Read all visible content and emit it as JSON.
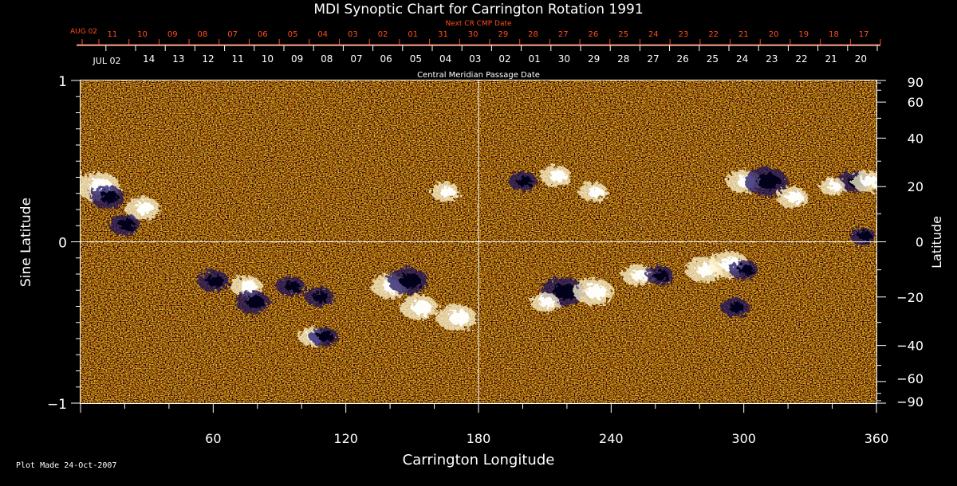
{
  "chart_data": {
    "type": "heatmap",
    "title": "MDI Synoptic Chart for Carrington Rotation 1991",
    "xlabel": "Carrington Longitude",
    "ylabel_left": "Sine Latitude",
    "ylabel_right": "Latitude",
    "xlim": [
      0,
      360
    ],
    "ylim_sine": [
      -1,
      1
    ],
    "x_ticks": [
      60,
      120,
      180,
      240,
      300,
      360
    ],
    "y_ticks_left": [
      {
        "value": 1,
        "label": "1"
      },
      {
        "value": 0,
        "label": "0"
      },
      {
        "value": -1,
        "label": "−1"
      }
    ],
    "y_ticks_right_deg": [
      90,
      60,
      40,
      20,
      0,
      -20,
      -40,
      -60,
      -90
    ],
    "y_tick_labels_right": [
      "90",
      "60",
      "40",
      "20",
      "0",
      "−20",
      "−40",
      "−60",
      "−90"
    ],
    "grid_lines": {
      "longitude": 180,
      "sine_latitude": 0
    },
    "top_axis_next": {
      "label": "Next CR CMP Date",
      "start_label": "AUG 02",
      "dates": [
        "11",
        "10",
        "09",
        "08",
        "07",
        "06",
        "05",
        "04",
        "03",
        "02",
        "01",
        "31",
        "30",
        "29",
        "28",
        "27",
        "26",
        "25",
        "24",
        "23",
        "22",
        "21",
        "20",
        "19",
        "18",
        "17"
      ]
    },
    "top_axis_cmp": {
      "label": "Central Meridian Passage Date",
      "start_label": "JUL 02",
      "dates": [
        "14",
        "13",
        "12",
        "11",
        "10",
        "09",
        "08",
        "07",
        "06",
        "05",
        "04",
        "03",
        "02",
        "01",
        "30",
        "29",
        "28",
        "27",
        "26",
        "25",
        "24",
        "23",
        "22",
        "21",
        "20"
      ]
    },
    "colormap": "magnetic flux: white = positive polarity, dark blue/black = negative polarity, orange = background",
    "colors": {
      "background": "#000000",
      "field": "#e0561c",
      "positive": "#ffffff",
      "negative": "#1a1060",
      "next_axis": "#ff4b1e",
      "grid": "#ffffff"
    },
    "active_regions": [
      {
        "lon": 8,
        "lat": 20,
        "polarity": "positive",
        "strength": 1.0
      },
      {
        "lon": 12,
        "lat": 16,
        "polarity": "negative",
        "strength": 0.7
      },
      {
        "lon": 28,
        "lat": 12,
        "polarity": "positive",
        "strength": 0.7
      },
      {
        "lon": 20,
        "lat": 6,
        "polarity": "negative",
        "strength": 0.6
      },
      {
        "lon": 60,
        "lat": -14,
        "polarity": "negative",
        "strength": 0.6
      },
      {
        "lon": 75,
        "lat": -16,
        "polarity": "positive",
        "strength": 0.6
      },
      {
        "lon": 78,
        "lat": -22,
        "polarity": "negative",
        "strength": 0.7
      },
      {
        "lon": 95,
        "lat": -16,
        "polarity": "negative",
        "strength": 0.5
      },
      {
        "lon": 108,
        "lat": -20,
        "polarity": "negative",
        "strength": 0.5
      },
      {
        "lon": 140,
        "lat": -16,
        "polarity": "positive",
        "strength": 0.8
      },
      {
        "lon": 148,
        "lat": -14,
        "polarity": "negative",
        "strength": 0.9
      },
      {
        "lon": 153,
        "lat": -24,
        "polarity": "positive",
        "strength": 0.8
      },
      {
        "lon": 170,
        "lat": -28,
        "polarity": "positive",
        "strength": 0.9
      },
      {
        "lon": 105,
        "lat": -36,
        "polarity": "positive",
        "strength": 0.5
      },
      {
        "lon": 110,
        "lat": -36,
        "polarity": "negative",
        "strength": 0.5
      },
      {
        "lon": 165,
        "lat": 18,
        "polarity": "positive",
        "strength": 0.5
      },
      {
        "lon": 200,
        "lat": 22,
        "polarity": "negative",
        "strength": 0.5
      },
      {
        "lon": 215,
        "lat": 24,
        "polarity": "positive",
        "strength": 0.6
      },
      {
        "lon": 232,
        "lat": 18,
        "polarity": "positive",
        "strength": 0.5
      },
      {
        "lon": 218,
        "lat": -18,
        "polarity": "negative",
        "strength": 1.0
      },
      {
        "lon": 232,
        "lat": -18,
        "polarity": "positive",
        "strength": 0.9
      },
      {
        "lon": 210,
        "lat": -22,
        "polarity": "positive",
        "strength": 0.5
      },
      {
        "lon": 252,
        "lat": -12,
        "polarity": "positive",
        "strength": 0.6
      },
      {
        "lon": 262,
        "lat": -12,
        "polarity": "negative",
        "strength": 0.5
      },
      {
        "lon": 282,
        "lat": -10,
        "polarity": "positive",
        "strength": 0.8
      },
      {
        "lon": 293,
        "lat": -8,
        "polarity": "positive",
        "strength": 0.9
      },
      {
        "lon": 300,
        "lat": -10,
        "polarity": "negative",
        "strength": 0.5
      },
      {
        "lon": 296,
        "lat": -24,
        "polarity": "negative",
        "strength": 0.5
      },
      {
        "lon": 300,
        "lat": 22,
        "polarity": "positive",
        "strength": 0.7
      },
      {
        "lon": 310,
        "lat": 22,
        "polarity": "negative",
        "strength": 1.0
      },
      {
        "lon": 322,
        "lat": 16,
        "polarity": "positive",
        "strength": 0.6
      },
      {
        "lon": 350,
        "lat": 22,
        "polarity": "negative",
        "strength": 0.6
      },
      {
        "lon": 356,
        "lat": 22,
        "polarity": "positive",
        "strength": 0.6
      },
      {
        "lon": 340,
        "lat": 20,
        "polarity": "positive",
        "strength": 0.4
      },
      {
        "lon": 354,
        "lat": 2,
        "polarity": "negative",
        "strength": 0.4
      }
    ]
  },
  "footer": "Plot Made 24-Oct-2007"
}
